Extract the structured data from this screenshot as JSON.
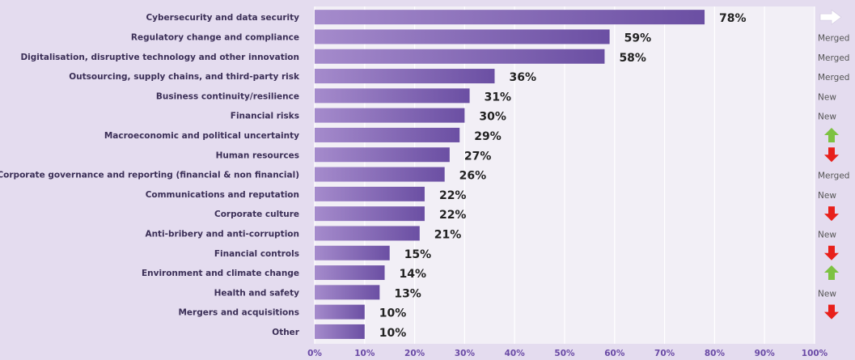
{
  "chart_data": {
    "type": "bar",
    "orientation": "horizontal",
    "categories": [
      "Cybersecurity and data security",
      "Regulatory change and compliance",
      "Digitalisation, disruptive technology and other innovation",
      "Outsourcing, supply chains, and third-party risk",
      "Business continuity/resilience",
      "Financial risks",
      "Macroeconomic and political uncertainty",
      "Human resources",
      "Corporate governance and reporting (financial & non financial)",
      "Communications and reputation",
      "Corporate culture",
      "Anti-bribery and anti-corruption",
      "Financial controls",
      "Environment and climate change",
      "Health and safety",
      "Mergers and acquisitions",
      "Other"
    ],
    "values": [
      78,
      59,
      58,
      36,
      31,
      30,
      29,
      27,
      26,
      22,
      22,
      21,
      15,
      14,
      13,
      10,
      10
    ],
    "value_labels": [
      "78%",
      "59%",
      "58%",
      "36%",
      "31%",
      "30%",
      "29%",
      "27%",
      "26%",
      "22%",
      "22%",
      "21%",
      "15%",
      "14%",
      "13%",
      "10%",
      "10%"
    ],
    "xlim": [
      0,
      100
    ],
    "x_ticks": [
      "0%",
      "10%",
      "20%",
      "30%",
      "40%",
      "50%",
      "60%",
      "70%",
      "80%",
      "90%",
      "100%"
    ],
    "grid": true,
    "title": "",
    "xlabel": "",
    "ylabel": "",
    "status_markers": [
      {
        "type": "icon",
        "icon": "arrow-right-icon",
        "color": "#ffffff"
      },
      {
        "type": "text",
        "text": "Merged"
      },
      {
        "type": "text",
        "text": "Merged"
      },
      {
        "type": "text",
        "text": "Merged"
      },
      {
        "type": "text",
        "text": "New"
      },
      {
        "type": "text",
        "text": "New"
      },
      {
        "type": "icon",
        "icon": "arrow-up-icon",
        "color": "#7dc242"
      },
      {
        "type": "icon",
        "icon": "arrow-down-icon",
        "color": "#e8201b"
      },
      {
        "type": "text",
        "text": "Merged"
      },
      {
        "type": "text",
        "text": "New"
      },
      {
        "type": "icon",
        "icon": "arrow-down-icon",
        "color": "#e8201b"
      },
      {
        "type": "text",
        "text": "New"
      },
      {
        "type": "icon",
        "icon": "arrow-down-icon",
        "color": "#e8201b"
      },
      {
        "type": "icon",
        "icon": "arrow-up-icon",
        "color": "#7dc242"
      },
      {
        "type": "text",
        "text": "New"
      },
      {
        "type": "icon",
        "icon": "arrow-down-icon",
        "color": "#e8201b"
      },
      {
        "type": "none"
      }
    ]
  },
  "colors": {
    "background": "#e4dcef",
    "plot_background": "#f2eff6",
    "bar_light": "#a58bcc",
    "bar_dark": "#6b4fa3",
    "grid": "#ffffff"
  }
}
